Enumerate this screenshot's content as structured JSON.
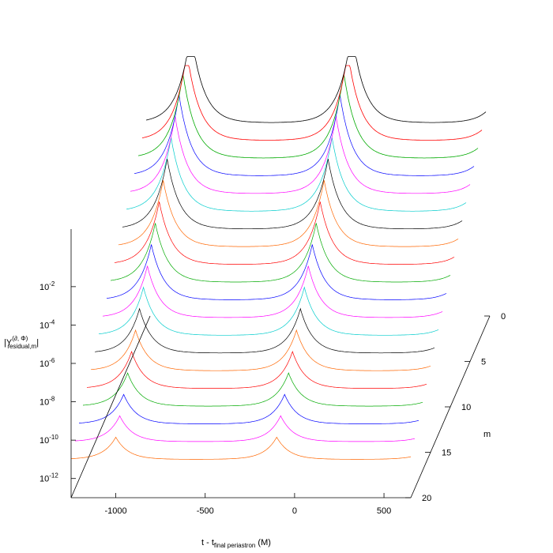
{
  "chart_data": {
    "type": "line",
    "view": "3d-surface-traces",
    "xlabel_main": "t - t",
    "xlabel_sub": "final periastron",
    "xlabel_units": " (M)",
    "ylabel": "m",
    "zlabel_main": "|Υ",
    "zlabel_sup": "(∂, Φ)",
    "zlabel_sub": "residual,m",
    "zlabel_end": "|",
    "x_ticks": [
      "-1000",
      "-500",
      "0",
      "500"
    ],
    "x_tick_values": [
      -1000,
      -500,
      0,
      500
    ],
    "m_ticks": [
      "0",
      "5",
      "10",
      "15",
      "20"
    ],
    "m_tick_values": [
      0,
      5,
      10,
      15,
      20
    ],
    "z_ticks_base": [
      "10",
      "10",
      "10",
      "10",
      "10",
      "10"
    ],
    "z_ticks_exp": [
      "-2",
      "-4",
      "-6",
      "-8",
      "-10",
      "-12"
    ],
    "z_tick_values": [
      -2,
      -4,
      -6,
      -8,
      -10,
      -12
    ],
    "xlim": [
      -1250,
      650
    ],
    "ylim": [
      0,
      20
    ],
    "zlim": [
      -13,
      1
    ],
    "zscale": "log",
    "grid": false,
    "legend": "none",
    "periastron_times": [
      -1000,
      -100
    ],
    "series_count": 20,
    "palette": [
      "#000000",
      "#ff0000",
      "#00aa00",
      "#0000ff",
      "#ff00ff",
      "#00cccc",
      "#000000",
      "#ff6600",
      "#ff0000",
      "#00aa00",
      "#0000ff",
      "#ff00ff",
      "#00cccc",
      "#000000",
      "#ff6600",
      "#ff0000",
      "#00aa00",
      "#0000ff",
      "#ff00ff",
      "#ff6600"
    ]
  }
}
